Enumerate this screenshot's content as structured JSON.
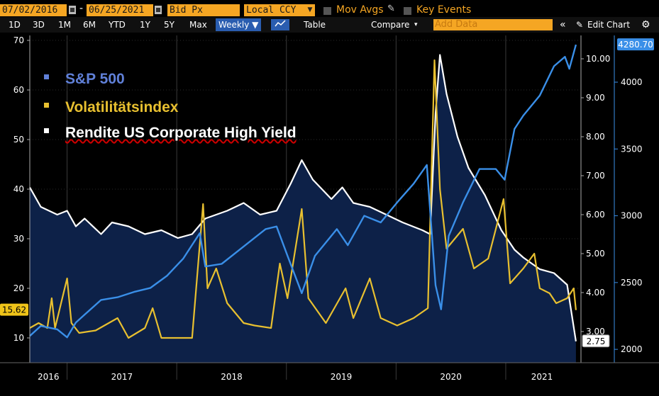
{
  "toolbar": {
    "start_date": "07/02/2016",
    "end_date": "06/25/2021",
    "field": "Bid Px",
    "currency": "Local CCY",
    "mov_avgs": "Mov Avgs",
    "key_events": "Key Events"
  },
  "toolbar2": {
    "ranges": [
      "1D",
      "3D",
      "1M",
      "6M",
      "YTD",
      "1Y",
      "5Y",
      "Max"
    ],
    "frequency": "Weekly ▼",
    "table": "Table",
    "compare": "Compare",
    "add_data_placeholder": "Add Data",
    "edit_chart": "Edit Chart"
  },
  "colors": {
    "sp500": "#3a8fe8",
    "vix": "#e8c030",
    "high_yield": "#ffffff",
    "area_fill": "#0d2148",
    "accent": "#f5a623"
  },
  "legend": [
    {
      "label": "S&P 500",
      "color": "#6080d8"
    },
    {
      "label": "Volatilitätsindex",
      "color": "#e8c030"
    },
    {
      "label": "Rendite US Corporate High Yield",
      "color": "#ffffff"
    }
  ],
  "chart_data": {
    "type": "line",
    "x_labels": [
      "2016",
      "2017",
      "2018",
      "2019",
      "2020",
      "2021"
    ],
    "left_axis": {
      "ticks": [
        10,
        20,
        30,
        40,
        50,
        60,
        70
      ],
      "range": [
        5,
        71
      ],
      "series": "Volatilitätsindex"
    },
    "right_axis_inner": {
      "ticks": [
        "3.00",
        "4.00",
        "5.00",
        "6.00",
        "7.00",
        "8.00",
        "9.00",
        "10.00"
      ],
      "range": [
        2.2,
        10.6
      ],
      "series": "Rendite US Corporate High Yield"
    },
    "right_axis_outer": {
      "ticks": [
        2000,
        2500,
        3000,
        3500,
        4000
      ],
      "range": [
        1900,
        4350
      ],
      "series": "S&P 500"
    },
    "last_values": {
      "vix": "15.62",
      "high_yield": "2.75",
      "sp500": "4280.70"
    },
    "series": [
      {
        "name": "S&P 500",
        "points": [
          [
            2016.5,
            2100
          ],
          [
            2016.6,
            2175
          ],
          [
            2016.75,
            2150
          ],
          [
            2016.84,
            2090
          ],
          [
            2016.92,
            2200
          ],
          [
            2017.0,
            2260
          ],
          [
            2017.15,
            2370
          ],
          [
            2017.3,
            2390
          ],
          [
            2017.45,
            2430
          ],
          [
            2017.6,
            2460
          ],
          [
            2017.75,
            2550
          ],
          [
            2017.9,
            2680
          ],
          [
            2018.05,
            2870
          ],
          [
            2018.1,
            2620
          ],
          [
            2018.25,
            2640
          ],
          [
            2018.45,
            2770
          ],
          [
            2018.65,
            2900
          ],
          [
            2018.75,
            2920
          ],
          [
            2018.85,
            2700
          ],
          [
            2018.98,
            2420
          ],
          [
            2019.1,
            2700
          ],
          [
            2019.3,
            2900
          ],
          [
            2019.4,
            2780
          ],
          [
            2019.55,
            3000
          ],
          [
            2019.7,
            2950
          ],
          [
            2019.85,
            3100
          ],
          [
            2020.0,
            3240
          ],
          [
            2020.12,
            3380
          ],
          [
            2020.2,
            2480
          ],
          [
            2020.25,
            2300
          ],
          [
            2020.32,
            2850
          ],
          [
            2020.45,
            3100
          ],
          [
            2020.6,
            3350
          ],
          [
            2020.75,
            3350
          ],
          [
            2020.83,
            3270
          ],
          [
            2020.92,
            3650
          ],
          [
            2021.0,
            3750
          ],
          [
            2021.15,
            3900
          ],
          [
            2021.28,
            4120
          ],
          [
            2021.38,
            4190
          ],
          [
            2021.42,
            4100
          ],
          [
            2021.48,
            4280.7
          ]
        ]
      },
      {
        "name": "Volatilitätsindex",
        "points": [
          [
            2016.5,
            12
          ],
          [
            2016.58,
            13
          ],
          [
            2016.66,
            12
          ],
          [
            2016.7,
            18
          ],
          [
            2016.73,
            12
          ],
          [
            2016.84,
            22
          ],
          [
            2016.88,
            13
          ],
          [
            2016.95,
            11
          ],
          [
            2017.1,
            11.5
          ],
          [
            2017.3,
            14
          ],
          [
            2017.4,
            10
          ],
          [
            2017.55,
            12
          ],
          [
            2017.62,
            16
          ],
          [
            2017.7,
            10
          ],
          [
            2017.85,
            10
          ],
          [
            2017.98,
            10
          ],
          [
            2018.08,
            37
          ],
          [
            2018.12,
            20
          ],
          [
            2018.2,
            24
          ],
          [
            2018.3,
            17
          ],
          [
            2018.45,
            13
          ],
          [
            2018.55,
            12.5
          ],
          [
            2018.7,
            12
          ],
          [
            2018.78,
            25
          ],
          [
            2018.85,
            18
          ],
          [
            2018.98,
            36
          ],
          [
            2019.04,
            18
          ],
          [
            2019.2,
            13
          ],
          [
            2019.38,
            20
          ],
          [
            2019.45,
            14
          ],
          [
            2019.6,
            22
          ],
          [
            2019.7,
            14
          ],
          [
            2019.85,
            12.5
          ],
          [
            2020.0,
            14
          ],
          [
            2020.13,
            16
          ],
          [
            2020.19,
            66
          ],
          [
            2020.24,
            40
          ],
          [
            2020.3,
            28
          ],
          [
            2020.45,
            32
          ],
          [
            2020.55,
            24
          ],
          [
            2020.68,
            26
          ],
          [
            2020.82,
            38
          ],
          [
            2020.88,
            21
          ],
          [
            2021.0,
            24
          ],
          [
            2021.1,
            27
          ],
          [
            2021.15,
            20
          ],
          [
            2021.24,
            19
          ],
          [
            2021.3,
            17
          ],
          [
            2021.4,
            18
          ],
          [
            2021.46,
            20
          ],
          [
            2021.48,
            15.62
          ]
        ]
      },
      {
        "name": "Rendite US Corporate High Yield",
        "points": [
          [
            2016.5,
            6.7
          ],
          [
            2016.6,
            6.2
          ],
          [
            2016.75,
            6.0
          ],
          [
            2016.84,
            6.1
          ],
          [
            2016.92,
            5.7
          ],
          [
            2017.0,
            5.9
          ],
          [
            2017.15,
            5.5
          ],
          [
            2017.25,
            5.8
          ],
          [
            2017.4,
            5.7
          ],
          [
            2017.55,
            5.5
          ],
          [
            2017.7,
            5.6
          ],
          [
            2017.85,
            5.4
          ],
          [
            2017.98,
            5.5
          ],
          [
            2018.1,
            5.9
          ],
          [
            2018.3,
            6.1
          ],
          [
            2018.45,
            6.3
          ],
          [
            2018.6,
            6.0
          ],
          [
            2018.75,
            6.1
          ],
          [
            2018.88,
            6.8
          ],
          [
            2018.98,
            7.4
          ],
          [
            2019.08,
            6.9
          ],
          [
            2019.25,
            6.4
          ],
          [
            2019.35,
            6.7
          ],
          [
            2019.45,
            6.3
          ],
          [
            2019.6,
            6.2
          ],
          [
            2019.75,
            6.0
          ],
          [
            2019.9,
            5.8
          ],
          [
            2020.08,
            5.6
          ],
          [
            2020.15,
            5.5
          ],
          [
            2020.2,
            8.6
          ],
          [
            2020.24,
            10.1
          ],
          [
            2020.3,
            9.1
          ],
          [
            2020.4,
            8.0
          ],
          [
            2020.5,
            7.2
          ],
          [
            2020.65,
            6.5
          ],
          [
            2020.8,
            5.6
          ],
          [
            2020.92,
            5.1
          ],
          [
            2021.0,
            4.9
          ],
          [
            2021.15,
            4.6
          ],
          [
            2021.28,
            4.5
          ],
          [
            2021.4,
            4.2
          ],
          [
            2021.48,
            2.75
          ]
        ]
      }
    ]
  }
}
